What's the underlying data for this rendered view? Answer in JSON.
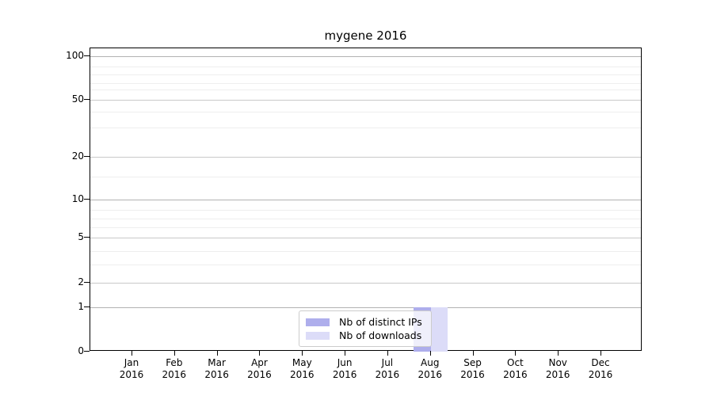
{
  "chart": {
    "title": "mygene 2016",
    "legend": [
      {
        "label": "Nb of distinct IPs",
        "color": "#aeaeec"
      },
      {
        "label": "Nb of downloads",
        "color": "#dcdcf8"
      }
    ]
  },
  "chart_data": {
    "type": "bar",
    "title": "mygene 2016",
    "categories": [
      "Jan 2016",
      "Feb 2016",
      "Mar 2016",
      "Apr 2016",
      "May 2016",
      "Jun 2016",
      "Jul 2016",
      "Aug 2016",
      "Sep 2016",
      "Oct 2016",
      "Nov 2016",
      "Dec 2016"
    ],
    "series": [
      {
        "name": "Nb of distinct IPs",
        "color": "#aeaeec",
        "values": [
          0,
          0,
          0,
          0,
          0,
          0,
          0,
          1,
          0,
          0,
          0,
          0
        ]
      },
      {
        "name": "Nb of downloads",
        "color": "#dcdcf8",
        "values": [
          0,
          0,
          0,
          0,
          0,
          0,
          0,
          1,
          0,
          0,
          0,
          0
        ]
      }
    ],
    "yscale": "symlog",
    "yticks": [
      0,
      1,
      2,
      5,
      10,
      20,
      50,
      100
    ],
    "ylim": [
      0,
      100
    ],
    "xlabel": "",
    "ylabel": "",
    "grid": true,
    "legend_position": "lower center inside"
  }
}
